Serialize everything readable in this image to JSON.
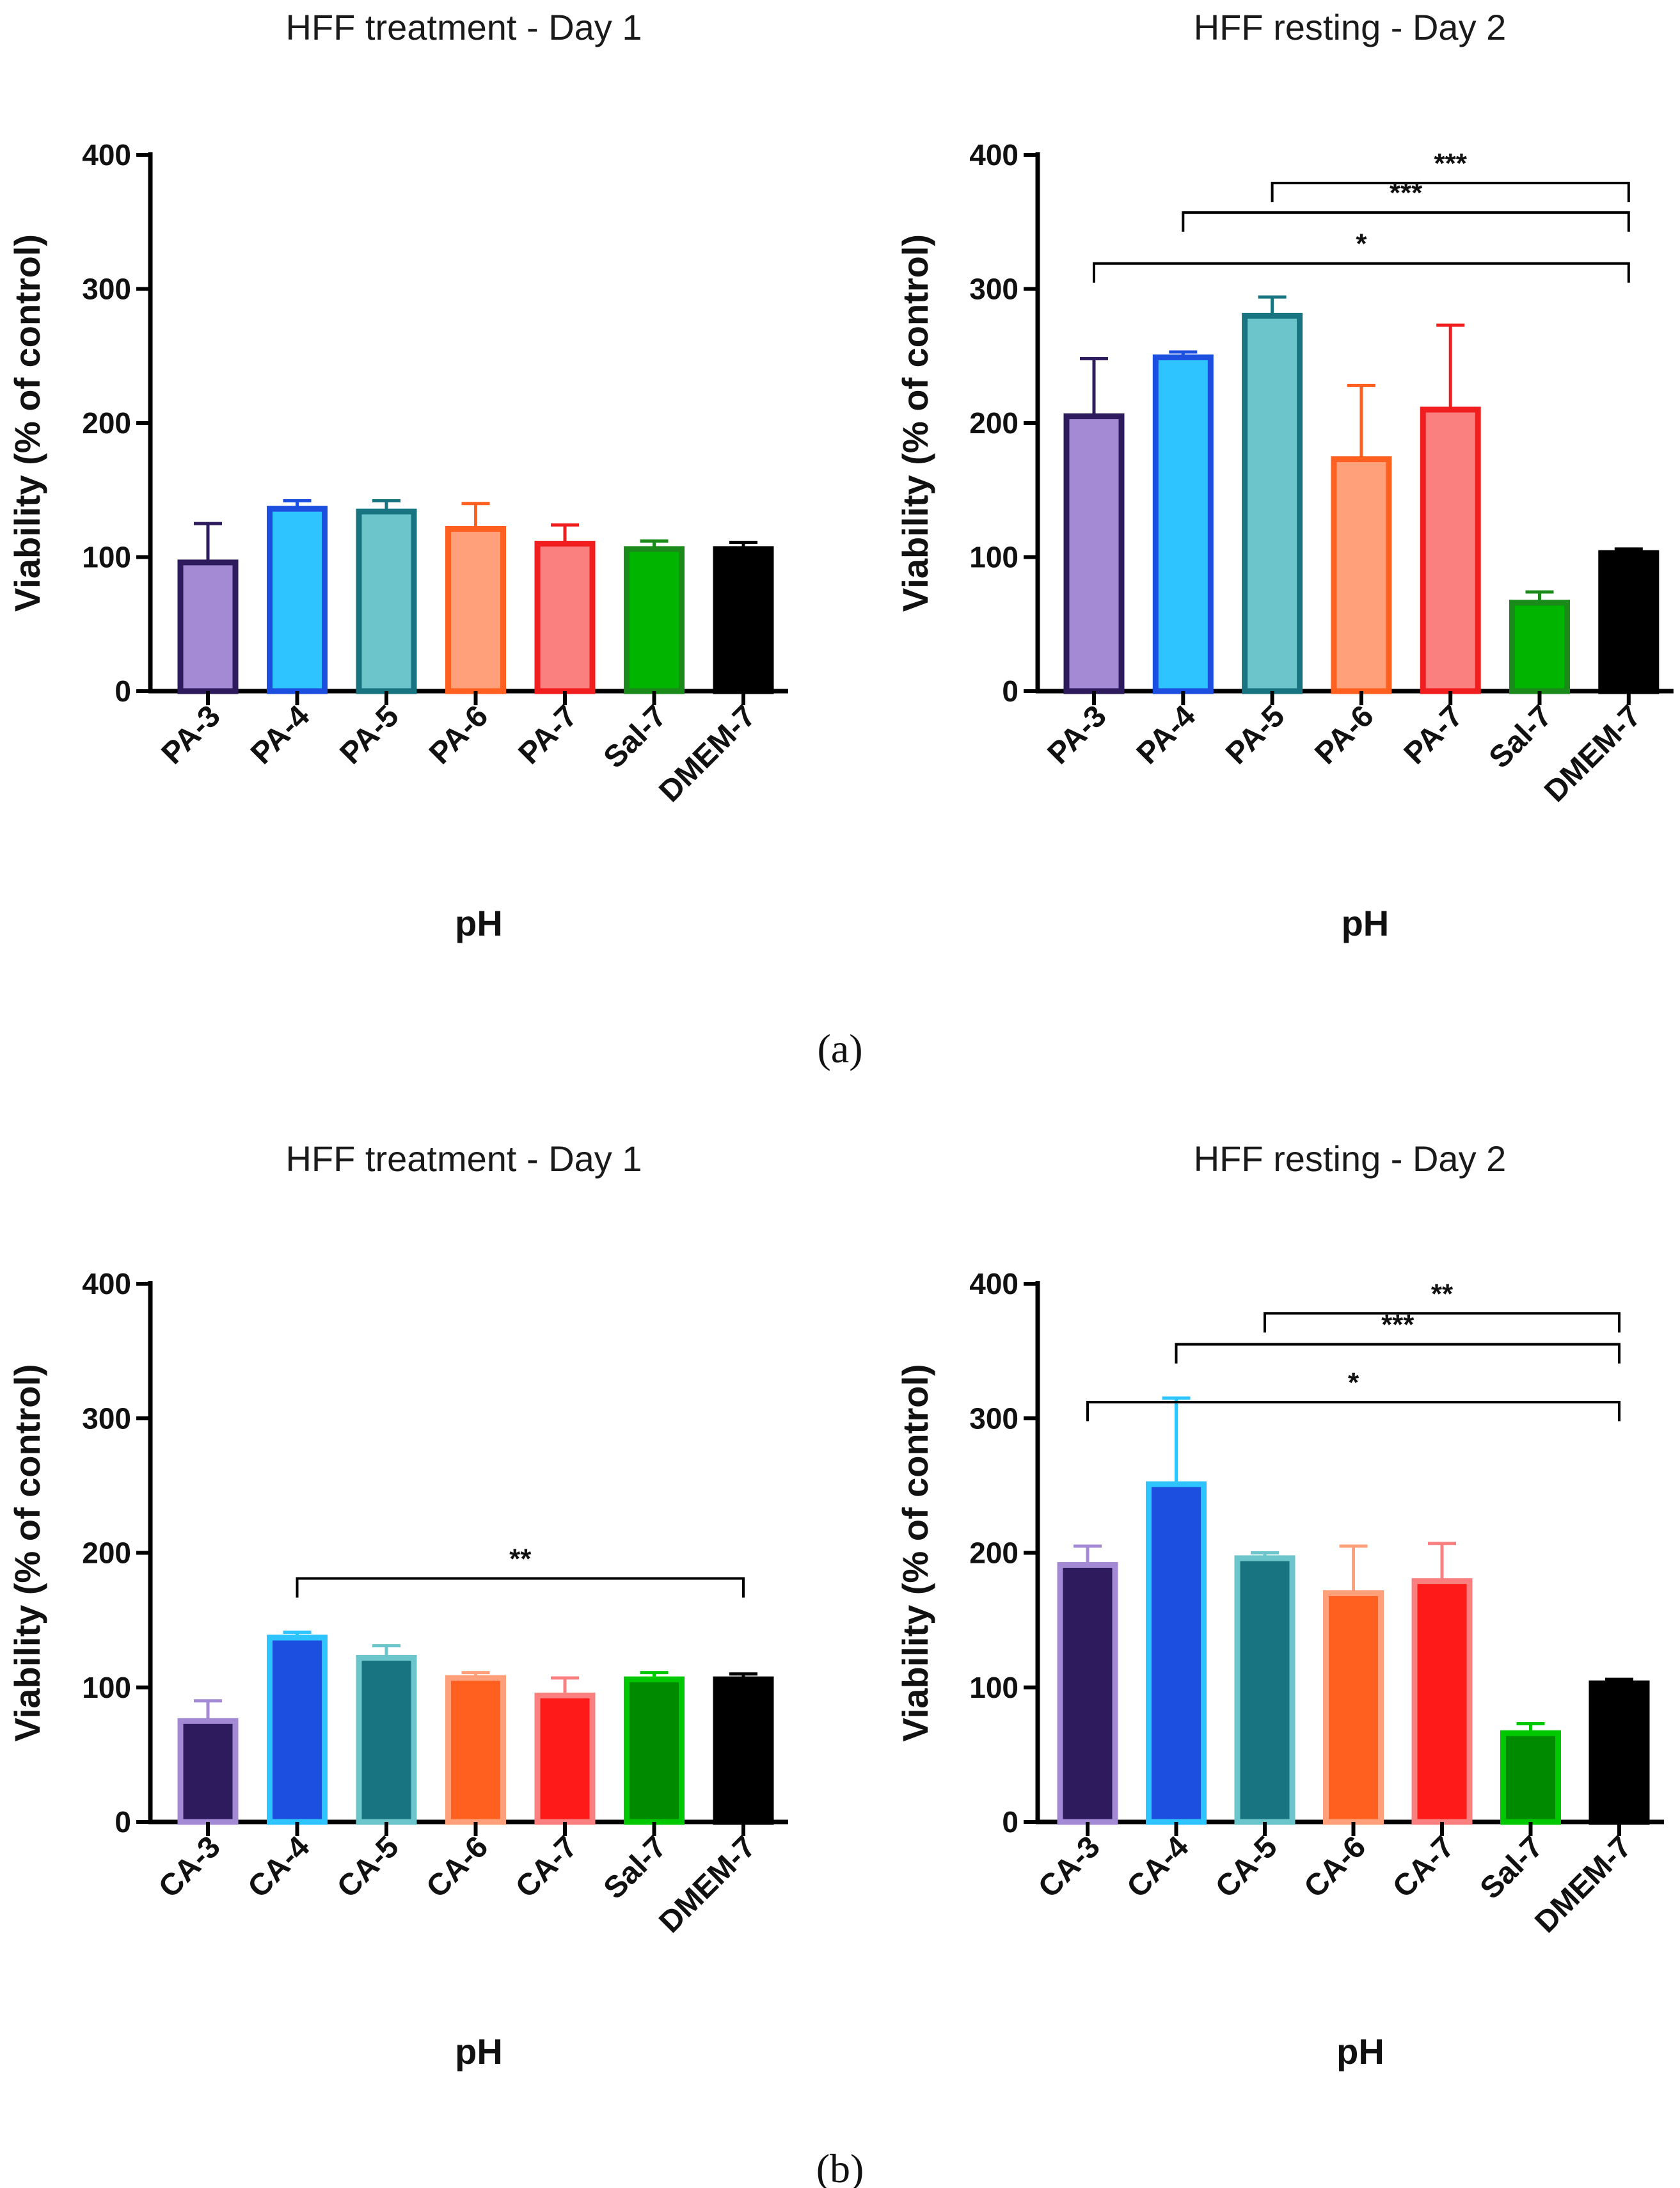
{
  "panel_labels": [
    "(a)",
    "(b)"
  ],
  "chart_data": [
    {
      "type": "bar",
      "title": "HFF treatment - Day 1",
      "xlabel": "pH",
      "ylabel": "Viability (% of control)",
      "ylim": [
        0,
        400
      ],
      "yticks": [
        "0",
        "100",
        "200",
        "300",
        "400"
      ],
      "categories": [
        "PA-3",
        "PA-4",
        "PA-5",
        "PA-6",
        "PA-7",
        "Sal-7",
        "DMEM-7"
      ],
      "values": [
        96,
        136,
        134,
        121,
        110,
        106,
        106
      ],
      "errors": [
        29,
        6,
        8,
        19,
        14,
        6,
        5
      ],
      "fill_colors": [
        "#a48ad4",
        "#2ec4ff",
        "#6cc5cb",
        "#ffa07a",
        "#fa8080",
        "#00b400",
        "#000000"
      ],
      "edge_colors": [
        "#2d1b5e",
        "#1c4fe0",
        "#177480",
        "#ff5f1f",
        "#f01e1e",
        "#1a8a1a",
        "#000000"
      ],
      "significance": []
    },
    {
      "type": "bar",
      "title": "HFF resting - Day 2",
      "xlabel": "pH",
      "ylabel": "Viability (% of control)",
      "ylim": [
        0,
        400
      ],
      "yticks": [
        "0",
        "100",
        "200",
        "300",
        "400"
      ],
      "categories": [
        "PA-3",
        "PA-4",
        "PA-5",
        "PA-6",
        "PA-7",
        "Sal-7",
        "DMEM-7"
      ],
      "values": [
        205,
        249,
        280,
        173,
        210,
        66,
        103
      ],
      "errors": [
        43,
        4,
        14,
        55,
        63,
        8,
        3
      ],
      "fill_colors": [
        "#a48ad4",
        "#2ec4ff",
        "#6cc5cb",
        "#ffa07a",
        "#fa8080",
        "#00b400",
        "#000000"
      ],
      "edge_colors": [
        "#2d1b5e",
        "#1c4fe0",
        "#177480",
        "#ff5f1f",
        "#f01e1e",
        "#1a8a1a",
        "#000000"
      ],
      "significance": [
        {
          "from": 2,
          "to": 6,
          "label": "***",
          "level": 379
        },
        {
          "from": 1,
          "to": 6,
          "label": "***",
          "level": 357
        },
        {
          "from": 0,
          "to": 6,
          "label": "*",
          "level": 319
        }
      ]
    },
    {
      "type": "bar",
      "title": "HFF treatment - Day 1",
      "xlabel": "pH",
      "ylabel": "Viability (% of control)",
      "ylim": [
        0,
        400
      ],
      "yticks": [
        "0",
        "100",
        "200",
        "300",
        "400"
      ],
      "categories": [
        "CA-3",
        "CA-4",
        "CA-5",
        "CA-6",
        "CA-7",
        "Sal-7",
        "DMEM-7"
      ],
      "values": [
        75,
        137,
        122,
        107,
        94,
        106,
        106
      ],
      "errors": [
        15,
        4,
        9,
        4,
        13,
        5,
        4
      ],
      "fill_colors": [
        "#2d1b5e",
        "#1c4fe0",
        "#177480",
        "#ff5f1f",
        "#ff1a1a",
        "#008a00",
        "#000000"
      ],
      "edge_colors": [
        "#a48ad4",
        "#2ec4ff",
        "#6cc5cb",
        "#ffa07a",
        "#fa8080",
        "#00c800",
        "#000000"
      ],
      "significance": [
        {
          "from": 1,
          "to": 6,
          "label": "**",
          "level": 181
        }
      ]
    },
    {
      "type": "bar",
      "title": "HFF resting - Day 2",
      "xlabel": "pH",
      "ylabel": "Viability (% of control)",
      "ylim": [
        0,
        400
      ],
      "yticks": [
        "0",
        "100",
        "200",
        "300",
        "400"
      ],
      "categories": [
        "CA-3",
        "CA-4",
        "CA-5",
        "CA-6",
        "CA-7",
        "Sal-7",
        "DMEM-7"
      ],
      "values": [
        191,
        251,
        196,
        170,
        179,
        66,
        103
      ],
      "errors": [
        14,
        64,
        4,
        35,
        28,
        7,
        3
      ],
      "fill_colors": [
        "#2d1b5e",
        "#1c4fe0",
        "#177480",
        "#ff5f1f",
        "#ff1a1a",
        "#008a00",
        "#000000"
      ],
      "edge_colors": [
        "#a48ad4",
        "#2ec4ff",
        "#6cc5cb",
        "#ffa07a",
        "#fa8080",
        "#00c800",
        "#000000"
      ],
      "significance": [
        {
          "from": 2,
          "to": 6,
          "label": "**",
          "level": 378
        },
        {
          "from": 1,
          "to": 6,
          "label": "***",
          "level": 355
        },
        {
          "from": 0,
          "to": 6,
          "label": "*",
          "level": 312
        }
      ]
    }
  ]
}
